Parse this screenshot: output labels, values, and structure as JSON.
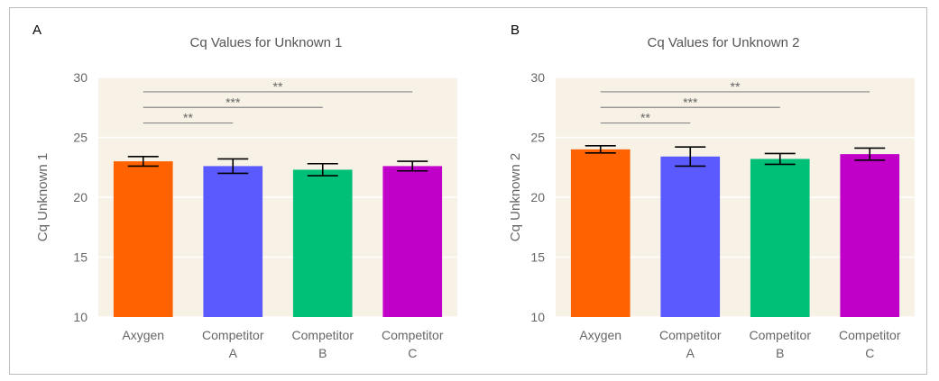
{
  "chart_data": [
    {
      "type": "bar",
      "panel": "A",
      "title": "Cq Values for Unknown 1",
      "ylabel": "Cq Unknown 1",
      "xlabel": "",
      "ylim": [
        10,
        30
      ],
      "yticks": [
        10,
        15,
        20,
        25,
        30
      ],
      "grid": true,
      "categories": [
        "Axygen",
        "Competitor A",
        "Competitor B",
        "Competitor C"
      ],
      "category_lines": [
        [
          "Axygen"
        ],
        [
          "Competitor",
          "A"
        ],
        [
          "Competitor",
          "B"
        ],
        [
          "Competitor",
          "C"
        ]
      ],
      "values": [
        23.0,
        22.6,
        22.3,
        22.6
      ],
      "errors": [
        0.4,
        0.6,
        0.5,
        0.4
      ],
      "colors": [
        "#ff6200",
        "#5a5aff",
        "#00c078",
        "#c000c8"
      ],
      "significance": [
        {
          "from": 0,
          "to": 3,
          "label": "**",
          "y": 28.8
        },
        {
          "from": 0,
          "to": 2,
          "label": "***",
          "y": 27.5
        },
        {
          "from": 0,
          "to": 1,
          "label": "**",
          "y": 26.2
        }
      ]
    },
    {
      "type": "bar",
      "panel": "B",
      "title": "Cq Values for Unknown 2",
      "ylabel": "Cq Unknown 2",
      "xlabel": "",
      "ylim": [
        10,
        30
      ],
      "yticks": [
        10,
        15,
        20,
        25,
        30
      ],
      "grid": true,
      "categories": [
        "Axygen",
        "Competitor A",
        "Competitor B",
        "Competitor C"
      ],
      "category_lines": [
        [
          "Axygen"
        ],
        [
          "Competitor",
          "A"
        ],
        [
          "Competitor",
          "B"
        ],
        [
          "Competitor",
          "C"
        ]
      ],
      "values": [
        24.0,
        23.4,
        23.2,
        23.6
      ],
      "errors": [
        0.3,
        0.8,
        0.45,
        0.5
      ],
      "colors": [
        "#ff6200",
        "#5a5aff",
        "#00c078",
        "#c000c8"
      ],
      "significance": [
        {
          "from": 0,
          "to": 3,
          "label": "**",
          "y": 28.8
        },
        {
          "from": 0,
          "to": 2,
          "label": "***",
          "y": 27.5
        },
        {
          "from": 0,
          "to": 1,
          "label": "**",
          "y": 26.2
        }
      ]
    }
  ],
  "style": {
    "plot_background": "#f7f1e6",
    "grid_color": "#ffffff",
    "bracket_color": "#888888",
    "errorbar_color": "#000000"
  }
}
